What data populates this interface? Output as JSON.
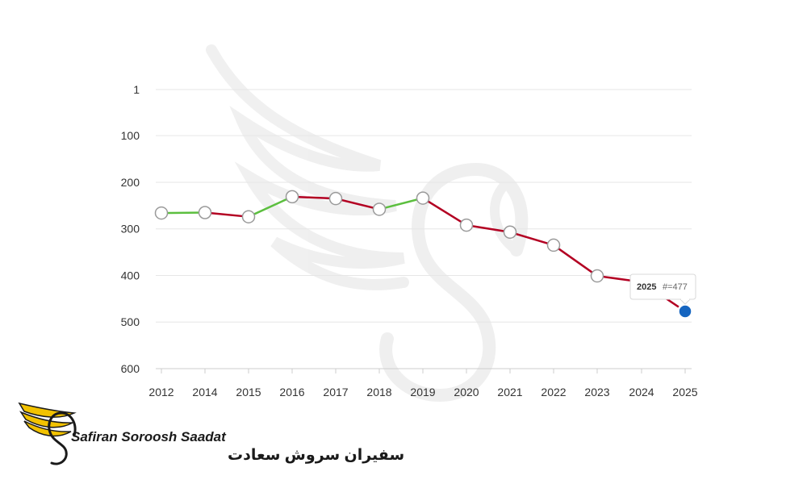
{
  "chart_data": {
    "type": "line",
    "x": [
      "2012",
      "2014",
      "2015",
      "2016",
      "2017",
      "2018",
      "2019",
      "2020",
      "2021",
      "2022",
      "2023",
      "2024",
      "2025"
    ],
    "y": [
      266,
      265,
      274,
      231,
      235,
      258,
      234,
      292,
      307,
      335,
      401,
      414,
      477
    ],
    "y_axis_reversed": true,
    "ylim": [
      1,
      600
    ],
    "y_ticks": [
      "1",
      "100",
      "200",
      "300",
      "400",
      "500",
      "600"
    ],
    "x_ticks": [
      "2012",
      "2014",
      "2015",
      "2016",
      "2017",
      "2018",
      "2019",
      "2020",
      "2021",
      "2022",
      "2023",
      "2024",
      "2025"
    ],
    "grid": true,
    "colors": {
      "improving": "#5cbf3f",
      "declining": "#b30022",
      "highlight_point": "#1565c0",
      "marker": "#ffffff"
    },
    "tooltip": {
      "year": "2025",
      "label": "#=477"
    }
  },
  "logo": {
    "text_en": "Safiran Soroosh Saadat",
    "text_fa": "سفیران سروش سعادت",
    "icon": "golden-wing-swan-logo",
    "colors": {
      "wing": "#f2c200",
      "outline": "#1a1a1a"
    }
  },
  "watermark": {
    "icon": "swan-wing-watermark"
  }
}
